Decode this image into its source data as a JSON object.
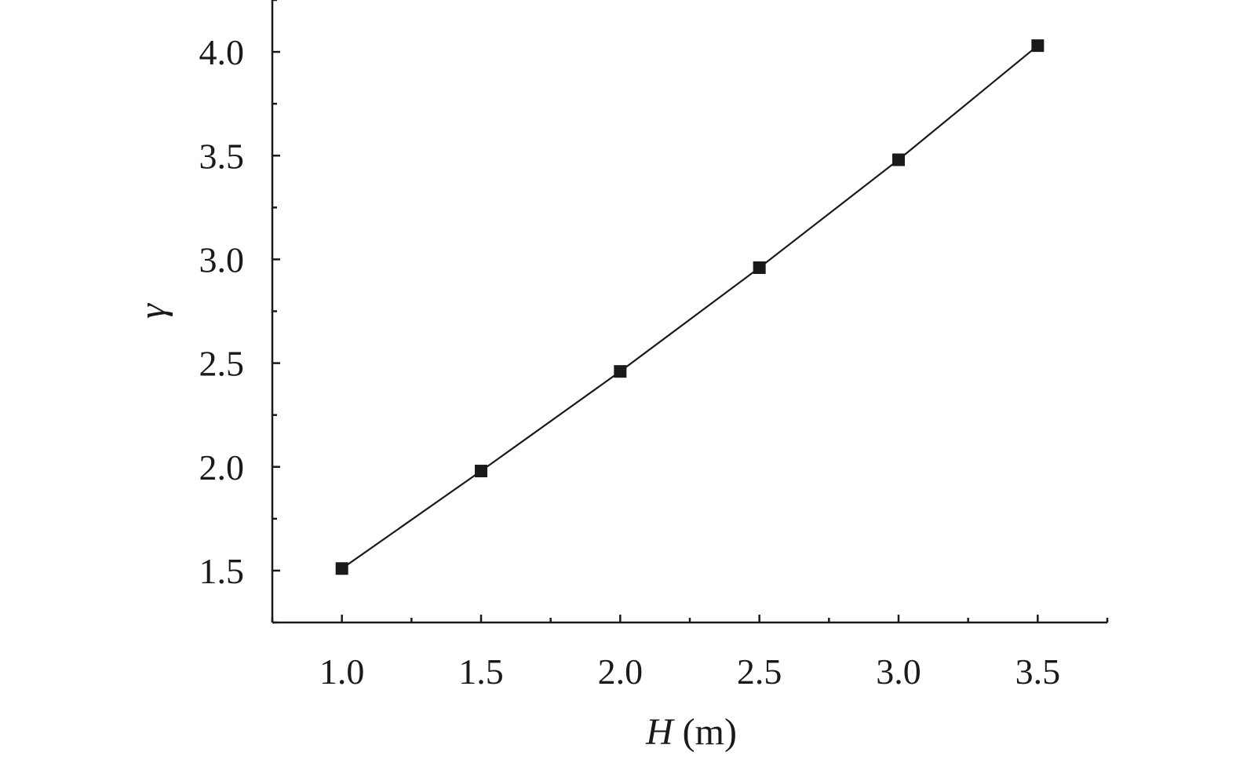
{
  "chart_data": {
    "type": "line",
    "title": "",
    "xlabel": {
      "var": "H",
      "unit": " (m)"
    },
    "ylabel": "γ",
    "xlim": [
      0.75,
      3.75
    ],
    "ylim": [
      1.25,
      4.25
    ],
    "x_ticks": [
      "1.0",
      "1.5",
      "2.0",
      "2.5",
      "3.0",
      "3.5"
    ],
    "y_ticks": [
      "1.5",
      "2.0",
      "2.5",
      "3.0",
      "3.5",
      "4.0"
    ],
    "grid": false,
    "legend": "none",
    "series": [
      {
        "marker": "square",
        "color": "#1a1a1a",
        "x": [
          1.0,
          1.5,
          2.0,
          2.5,
          3.0,
          3.5
        ],
        "y": [
          1.51,
          1.98,
          2.46,
          2.96,
          3.48,
          4.03
        ]
      }
    ]
  }
}
